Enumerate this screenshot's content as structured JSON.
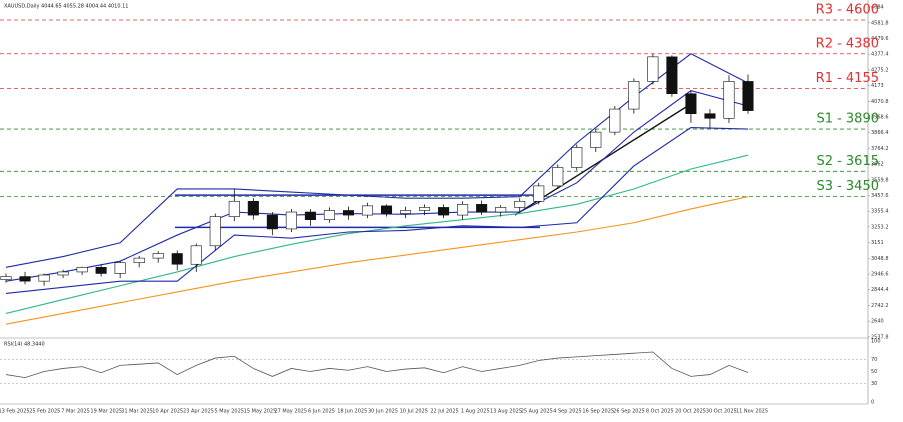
{
  "chart_data": [
    {
      "type": "candlestick",
      "title": "XAUUSD,Daily 4044.65 4055.28 4004.44 4010.11",
      "ylim": [
        2530,
        4730
      ],
      "yticks": [
        2537.8,
        2640,
        2742.2,
        2844.4,
        2946.6,
        3048.8,
        3151,
        3253.2,
        3355.4,
        3457.6,
        3559.8,
        3662,
        3764.2,
        3866.4,
        3968.6,
        4070.8,
        4173,
        4275.2,
        4377.4,
        4479.6,
        4581.8,
        4684
      ],
      "date_labels": [
        "13 Feb 2025",
        "25 Feb 2025",
        "7 Mar 2025",
        "19 Mar 2025",
        "31 Mar 2025",
        "10 Apr 2025",
        "23 Apr 2025",
        "5 May 2025",
        "15 May 2025",
        "27 May 2025",
        "6 Jun 2025",
        "18 Jun 2025",
        "30 Jun 2025",
        "10 Jul 2025",
        "22 Jul 2025",
        "1 Aug 2025",
        "13 Aug 2025",
        "25 Aug 2025",
        "4 Sep 2025",
        "16 Sep 2025",
        "26 Sep 2025",
        "8 Oct 2025",
        "20 Oct 2025",
        "30 Oct 2025",
        "11 Nov 2025"
      ],
      "open": [
        2910,
        2930,
        2900,
        2940,
        2960,
        2990,
        2950,
        3020,
        3050,
        3080,
        3010,
        3130,
        3320,
        3420,
        3330,
        3240,
        3350,
        3300,
        3360,
        3330,
        3390,
        3340,
        3360,
        3380,
        3330,
        3400,
        3350,
        3380,
        3420,
        3520,
        3640,
        3770,
        3870,
        4020,
        4200,
        4360,
        4120,
        3990,
        3960,
        4200
      ],
      "high": [
        2950,
        2960,
        2950,
        2975,
        2995,
        3010,
        3030,
        3065,
        3095,
        3100,
        3145,
        3340,
        3500,
        3440,
        3350,
        3370,
        3370,
        3380,
        3385,
        3410,
        3400,
        3385,
        3400,
        3400,
        3420,
        3425,
        3395,
        3440,
        3540,
        3660,
        3790,
        3890,
        4040,
        4220,
        4380,
        4370,
        4140,
        4020,
        4240,
        4245
      ],
      "low": [
        2890,
        2880,
        2870,
        2920,
        2940,
        2930,
        2920,
        2990,
        3020,
        2970,
        2960,
        3100,
        3290,
        3300,
        3200,
        3220,
        3260,
        3280,
        3300,
        3310,
        3320,
        3310,
        3330,
        3310,
        3300,
        3330,
        3320,
        3350,
        3400,
        3500,
        3620,
        3740,
        3850,
        3990,
        4180,
        4100,
        3930,
        3900,
        3930,
        3990
      ],
      "close": [
        2930,
        2900,
        2940,
        2960,
        2990,
        2950,
        3020,
        3050,
        3080,
        3010,
        3130,
        3320,
        3420,
        3330,
        3240,
        3350,
        3300,
        3360,
        3330,
        3390,
        3340,
        3360,
        3380,
        3330,
        3400,
        3350,
        3380,
        3420,
        3520,
        3640,
        3770,
        3870,
        4020,
        4200,
        4360,
        4120,
        3990,
        3960,
        4200,
        4010
      ],
      "series": [
        {
          "color": "#f7931e",
          "values": [
            2620,
            2690,
            2760,
            2830,
            2900,
            2960,
            3020,
            3070,
            3120,
            3170,
            3220,
            3280,
            3370,
            3450
          ]
        },
        {
          "color": "#2eb886",
          "values": [
            2690,
            2780,
            2870,
            2960,
            3060,
            3140,
            3210,
            3260,
            3300,
            3340,
            3400,
            3500,
            3630,
            3720
          ]
        },
        {
          "color": "#1f2aa8",
          "values": [
            2990,
            3060,
            3150,
            3500,
            3500,
            3480,
            3460,
            3440,
            3440,
            3450,
            3800,
            4100,
            4380,
            4190
          ]
        },
        {
          "color": "#1f2aa8",
          "values": [
            2900,
            2960,
            3030,
            3200,
            3350,
            3330,
            3340,
            3335,
            3350,
            3350,
            3540,
            3870,
            4140,
            4040
          ]
        },
        {
          "color": "#1f2aa8",
          "values": [
            2820,
            2860,
            2900,
            2900,
            3200,
            3180,
            3220,
            3230,
            3260,
            3250,
            3280,
            3650,
            3900,
            3890
          ]
        }
      ],
      "range_box": [
        3460,
        3250
      ],
      "trendline": [
        3330,
        4050
      ],
      "levels": [
        {
          "label": "R3 - 4600",
          "value": 4600,
          "color": "#e03030"
        },
        {
          "label": "R2 - 4380",
          "value": 4380,
          "color": "#e03030"
        },
        {
          "label": "R1 - 4155",
          "value": 4155,
          "color": "#e03030"
        },
        {
          "label": "S1 - 3890",
          "value": 3890,
          "color": "#2a8a2a"
        },
        {
          "label": "S2 - 3615",
          "value": 3615,
          "color": "#2a8a2a"
        },
        {
          "label": "S3 - 3450",
          "value": 3450,
          "color": "#2a8a2a"
        }
      ]
    },
    {
      "type": "line",
      "title": "RSI(14) 48.3440",
      "ylim": [
        0,
        100
      ],
      "yticks": [
        0,
        30,
        50,
        70,
        100
      ],
      "levels": [
        30,
        70
      ],
      "color": "#555",
      "values": [
        45,
        40,
        50,
        55,
        58,
        48,
        60,
        62,
        64,
        45,
        60,
        72,
        75,
        55,
        42,
        55,
        50,
        55,
        52,
        58,
        50,
        54,
        56,
        48,
        58,
        50,
        55,
        60,
        68,
        72,
        74,
        76,
        78,
        80,
        82,
        55,
        42,
        45,
        60,
        48.344
      ]
    }
  ]
}
